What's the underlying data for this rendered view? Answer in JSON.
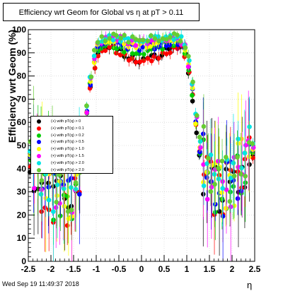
{
  "chart_data": {
    "type": "scatter",
    "title": "Efficiency wrt Geom for Global vs    η at pT > 0.11",
    "xlabel": "η",
    "ylabel": "Efficiency wrt Geom (%)",
    "xlim": [
      -2.5,
      2.5
    ],
    "ylim": [
      0,
      100
    ],
    "x_ticks": [
      "-2.5",
      "-2",
      "-1.5",
      "-1",
      "-0.5",
      "0",
      "0.5",
      "1",
      "1.5",
      "2",
      "2.5"
    ],
    "y_ticks": [
      "0",
      "10",
      "20",
      "30",
      "40",
      "50",
      "60",
      "70",
      "80",
      "90",
      "100"
    ],
    "grid": true,
    "legend_position": "center-left",
    "series": [
      {
        "name": "(+) with pT(q) > 0",
        "color": "#000000",
        "profile": [
          [
            -2.5,
            41
          ],
          [
            -2.3,
            36
          ],
          [
            -2.1,
            29
          ],
          [
            -1.9,
            27
          ],
          [
            -1.7,
            25
          ],
          [
            -1.5,
            29
          ],
          [
            -1.3,
            44
          ],
          [
            -1.2,
            62
          ],
          [
            -1.1,
            78
          ],
          [
            -1.0,
            88
          ],
          [
            -0.9,
            92
          ],
          [
            -0.7,
            93
          ],
          [
            -0.5,
            91
          ],
          [
            -0.3,
            88
          ],
          [
            0.0,
            87
          ],
          [
            0.3,
            88
          ],
          [
            0.5,
            91
          ],
          [
            0.7,
            93
          ],
          [
            0.9,
            92
          ],
          [
            1.0,
            86
          ],
          [
            1.1,
            74
          ],
          [
            1.2,
            58
          ],
          [
            1.3,
            44
          ],
          [
            1.5,
            31
          ],
          [
            1.7,
            28
          ],
          [
            1.9,
            30
          ],
          [
            2.1,
            34
          ],
          [
            2.3,
            40
          ],
          [
            2.5,
            45
          ]
        ]
      },
      {
        "name": "(+) with pT(q) > 0.1",
        "color": "#ff0000",
        "profile": [
          [
            -2.5,
            42
          ],
          [
            -2.3,
            37
          ],
          [
            -2.1,
            30
          ],
          [
            -1.9,
            27
          ],
          [
            -1.7,
            26
          ],
          [
            -1.5,
            30
          ],
          [
            -1.3,
            45
          ],
          [
            -1.2,
            63
          ],
          [
            -1.1,
            79
          ],
          [
            -1.0,
            88
          ],
          [
            -0.9,
            92
          ],
          [
            -0.7,
            92
          ],
          [
            -0.5,
            90
          ],
          [
            -0.3,
            87
          ],
          [
            0.0,
            86
          ],
          [
            0.3,
            87
          ],
          [
            0.5,
            90
          ],
          [
            0.7,
            92
          ],
          [
            0.9,
            92
          ],
          [
            1.0,
            86
          ],
          [
            1.1,
            75
          ],
          [
            1.2,
            59
          ],
          [
            1.3,
            45
          ],
          [
            1.5,
            32
          ],
          [
            1.7,
            29
          ],
          [
            1.9,
            31
          ],
          [
            2.1,
            35
          ],
          [
            2.3,
            41
          ],
          [
            2.5,
            46
          ]
        ]
      },
      {
        "name": "(+) with pT(q) > 0.2",
        "color": "#00cc00",
        "profile": [
          [
            -2.5,
            44
          ],
          [
            -2.3,
            38
          ],
          [
            -2.1,
            31
          ],
          [
            -1.9,
            28
          ],
          [
            -1.7,
            27
          ],
          [
            -1.5,
            31
          ],
          [
            -1.3,
            46
          ],
          [
            -1.2,
            64
          ],
          [
            -1.1,
            80
          ],
          [
            -1.0,
            89
          ],
          [
            -0.9,
            93
          ],
          [
            -0.7,
            94
          ],
          [
            -0.5,
            93
          ],
          [
            -0.3,
            91
          ],
          [
            0.0,
            90
          ],
          [
            0.3,
            91
          ],
          [
            0.5,
            93
          ],
          [
            0.7,
            94
          ],
          [
            0.9,
            93
          ],
          [
            1.0,
            87
          ],
          [
            1.1,
            76
          ],
          [
            1.2,
            60
          ],
          [
            1.3,
            46
          ],
          [
            1.5,
            33
          ],
          [
            1.7,
            30
          ],
          [
            1.9,
            32
          ],
          [
            2.1,
            36
          ],
          [
            2.3,
            42
          ],
          [
            2.5,
            47
          ]
        ]
      },
      {
        "name": "(+) with pT(q) > 0.5",
        "color": "#0000ff",
        "profile": [
          [
            -2.5,
            46
          ],
          [
            -2.3,
            40
          ],
          [
            -2.1,
            32
          ],
          [
            -1.9,
            29
          ],
          [
            -1.7,
            28
          ],
          [
            -1.5,
            32
          ],
          [
            -1.3,
            47
          ],
          [
            -1.2,
            65
          ],
          [
            -1.1,
            81
          ],
          [
            -1.0,
            90
          ],
          [
            -0.9,
            94
          ],
          [
            -0.7,
            95
          ],
          [
            -0.5,
            94
          ],
          [
            -0.3,
            93
          ],
          [
            0.0,
            92
          ],
          [
            0.3,
            93
          ],
          [
            0.5,
            94
          ],
          [
            0.7,
            95
          ],
          [
            0.9,
            94
          ],
          [
            1.0,
            88
          ],
          [
            1.1,
            77
          ],
          [
            1.2,
            61
          ],
          [
            1.3,
            47
          ],
          [
            1.5,
            34
          ],
          [
            1.7,
            31
          ],
          [
            1.9,
            33
          ],
          [
            2.1,
            37
          ],
          [
            2.3,
            43
          ],
          [
            2.5,
            48
          ]
        ]
      },
      {
        "name": "(+) with pT(q) > 1.0",
        "color": "#ffff00",
        "profile": [
          [
            -2.5,
            47
          ],
          [
            -2.3,
            41
          ],
          [
            -2.1,
            33
          ],
          [
            -1.9,
            30
          ],
          [
            -1.7,
            29
          ],
          [
            -1.5,
            33
          ],
          [
            -1.3,
            48
          ],
          [
            -1.2,
            66
          ],
          [
            -1.1,
            82
          ],
          [
            -1.0,
            91
          ],
          [
            -0.9,
            95
          ],
          [
            -0.7,
            96
          ],
          [
            -0.5,
            95
          ],
          [
            -0.3,
            94
          ],
          [
            0.0,
            93
          ],
          [
            0.3,
            94
          ],
          [
            0.5,
            95
          ],
          [
            0.7,
            96
          ],
          [
            0.9,
            95
          ],
          [
            1.0,
            89
          ],
          [
            1.1,
            78
          ],
          [
            1.2,
            62
          ],
          [
            1.3,
            48
          ],
          [
            1.5,
            35
          ],
          [
            1.7,
            32
          ],
          [
            1.9,
            34
          ],
          [
            2.1,
            38
          ],
          [
            2.3,
            44
          ],
          [
            2.5,
            49
          ]
        ]
      },
      {
        "name": "(+) with pT(q) > 1.5",
        "color": "#ff00ff",
        "profile": [
          [
            -2.5,
            48
          ],
          [
            -2.3,
            42
          ],
          [
            -2.1,
            34
          ],
          [
            -1.9,
            31
          ],
          [
            -1.7,
            30
          ],
          [
            -1.5,
            34
          ],
          [
            -1.3,
            49
          ],
          [
            -1.2,
            67
          ],
          [
            -1.1,
            83
          ],
          [
            -1.0,
            92
          ],
          [
            -0.9,
            95
          ],
          [
            -0.7,
            96
          ],
          [
            -0.5,
            96
          ],
          [
            -0.3,
            95
          ],
          [
            0.0,
            94
          ],
          [
            0.3,
            95
          ],
          [
            0.5,
            96
          ],
          [
            0.7,
            96
          ],
          [
            0.9,
            95
          ],
          [
            1.0,
            90
          ],
          [
            1.1,
            79
          ],
          [
            1.2,
            63
          ],
          [
            1.3,
            49
          ],
          [
            1.5,
            36
          ],
          [
            1.7,
            33
          ],
          [
            1.9,
            35
          ],
          [
            2.1,
            39
          ],
          [
            2.3,
            45
          ],
          [
            2.5,
            50
          ]
        ]
      },
      {
        "name": "(+) with pT(q) > 2.0",
        "color": "#00e5e5",
        "profile": [
          [
            -2.5,
            50
          ],
          [
            -2.3,
            43
          ],
          [
            -2.1,
            35
          ],
          [
            -1.9,
            32
          ],
          [
            -1.7,
            31
          ],
          [
            -1.5,
            35
          ],
          [
            -1.3,
            50
          ],
          [
            -1.2,
            68
          ],
          [
            -1.1,
            84
          ],
          [
            -1.0,
            92
          ],
          [
            -0.9,
            96
          ],
          [
            -0.7,
            97
          ],
          [
            -0.5,
            96
          ],
          [
            -0.3,
            96
          ],
          [
            0.0,
            95
          ],
          [
            0.3,
            96
          ],
          [
            0.5,
            96
          ],
          [
            0.7,
            97
          ],
          [
            0.9,
            96
          ],
          [
            1.0,
            91
          ],
          [
            1.1,
            80
          ],
          [
            1.2,
            64
          ],
          [
            1.3,
            50
          ],
          [
            1.5,
            37
          ],
          [
            1.7,
            34
          ],
          [
            1.9,
            36
          ],
          [
            2.1,
            40
          ],
          [
            2.3,
            46
          ],
          [
            2.5,
            51
          ]
        ]
      },
      {
        "name": "(+) with pT(q) > 2.0",
        "color": "#66cc33",
        "profile": [
          [
            -2.5,
            52
          ],
          [
            -2.3,
            45
          ],
          [
            -2.1,
            36
          ],
          [
            -1.9,
            33
          ],
          [
            -1.7,
            32
          ],
          [
            -1.5,
            36
          ],
          [
            -1.3,
            51
          ],
          [
            -1.2,
            69
          ],
          [
            -1.1,
            85
          ],
          [
            -1.0,
            93
          ],
          [
            -0.9,
            96
          ],
          [
            -0.7,
            97
          ],
          [
            -0.5,
            97
          ],
          [
            -0.3,
            96
          ],
          [
            0.0,
            96
          ],
          [
            0.3,
            96
          ],
          [
            0.5,
            97
          ],
          [
            0.7,
            97
          ],
          [
            0.9,
            96
          ],
          [
            1.0,
            92
          ],
          [
            1.1,
            81
          ],
          [
            1.2,
            65
          ],
          [
            1.3,
            51
          ],
          [
            1.5,
            38
          ],
          [
            1.7,
            35
          ],
          [
            1.9,
            37
          ],
          [
            2.1,
            41
          ],
          [
            2.3,
            47
          ],
          [
            2.5,
            52
          ]
        ]
      }
    ]
  },
  "timestamp": "Wed Sep 19 11:49:37 2018"
}
